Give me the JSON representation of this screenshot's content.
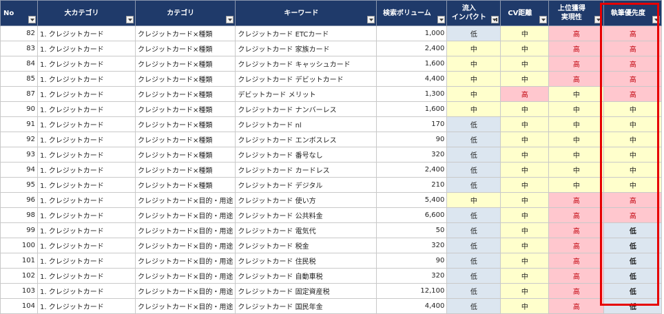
{
  "headers": {
    "no": "No",
    "major": "大カテゴリ",
    "category": "カテゴリ",
    "keyword": "キーワード",
    "volume": "検索ボリューム",
    "impact": "流入\nインパクト",
    "cv": "CV距離",
    "rank": "上位獲得\n実現性",
    "priority": "執筆優先度"
  },
  "levels": {
    "low": "低",
    "mid": "中",
    "high": "高"
  },
  "colors": {
    "header_bg": "#1f3a6a",
    "low_bg": "#dce6f0",
    "mid_bg": "#ffffcc",
    "high_bg": "#ffc7ce",
    "high_text": "#c0000b",
    "highlight_border": "#e60000"
  },
  "rows": [
    {
      "no": "82",
      "major": "1. クレジットカード",
      "category": "クレジットカード×種類",
      "keyword": "クレジットカード ETCカード",
      "volume": "1,000",
      "impact": "low",
      "cv": "mid",
      "rank": "high",
      "priority": "high"
    },
    {
      "no": "83",
      "major": "1. クレジットカード",
      "category": "クレジットカード×種類",
      "keyword": "クレジットカード 家族カード",
      "volume": "2,400",
      "impact": "mid",
      "cv": "mid",
      "rank": "high",
      "priority": "high"
    },
    {
      "no": "84",
      "major": "1. クレジットカード",
      "category": "クレジットカード×種類",
      "keyword": "クレジットカード キャッシュカード",
      "volume": "1,600",
      "impact": "mid",
      "cv": "mid",
      "rank": "high",
      "priority": "high"
    },
    {
      "no": "85",
      "major": "1. クレジットカード",
      "category": "クレジットカード×種類",
      "keyword": "クレジットカード デビットカード",
      "volume": "4,400",
      "impact": "mid",
      "cv": "mid",
      "rank": "high",
      "priority": "high"
    },
    {
      "no": "87",
      "major": "1. クレジットカード",
      "category": "クレジットカード×種類",
      "keyword": "デビットカード メリット",
      "volume": "1,300",
      "impact": "mid",
      "cv": "high",
      "rank": "mid",
      "priority": "high"
    },
    {
      "no": "90",
      "major": "1. クレジットカード",
      "category": "クレジットカード×種類",
      "keyword": "クレジットカード ナンバーレス",
      "volume": "1,600",
      "impact": "mid",
      "cv": "mid",
      "rank": "mid",
      "priority": "mid"
    },
    {
      "no": "91",
      "major": "1. クレジットカード",
      "category": "クレジットカード×種類",
      "keyword": "クレジットカード nl",
      "volume": "170",
      "impact": "low",
      "cv": "mid",
      "rank": "mid",
      "priority": "mid"
    },
    {
      "no": "92",
      "major": "1. クレジットカード",
      "category": "クレジットカード×種類",
      "keyword": "クレジットカード エンボスレス",
      "volume": "90",
      "impact": "low",
      "cv": "mid",
      "rank": "mid",
      "priority": "mid"
    },
    {
      "no": "93",
      "major": "1. クレジットカード",
      "category": "クレジットカード×種類",
      "keyword": "クレジットカード 番号なし",
      "volume": "320",
      "impact": "low",
      "cv": "mid",
      "rank": "mid",
      "priority": "mid"
    },
    {
      "no": "94",
      "major": "1. クレジットカード",
      "category": "クレジットカード×種類",
      "keyword": "クレジットカード カードレス",
      "volume": "2,400",
      "impact": "low",
      "cv": "mid",
      "rank": "mid",
      "priority": "mid"
    },
    {
      "no": "95",
      "major": "1. クレジットカード",
      "category": "クレジットカード×種類",
      "keyword": "クレジットカード デジタル",
      "volume": "210",
      "impact": "low",
      "cv": "mid",
      "rank": "mid",
      "priority": "mid"
    },
    {
      "no": "96",
      "major": "1. クレジットカード",
      "category": "クレジットカード×目的・用途",
      "keyword": "クレジットカード 使い方",
      "volume": "5,400",
      "impact": "mid",
      "cv": "mid",
      "rank": "high",
      "priority": "high"
    },
    {
      "no": "98",
      "major": "1. クレジットカード",
      "category": "クレジットカード×目的・用途",
      "keyword": "クレジットカード 公共料金",
      "volume": "6,600",
      "impact": "low",
      "cv": "mid",
      "rank": "high",
      "priority": "high"
    },
    {
      "no": "99",
      "major": "1. クレジットカード",
      "category": "クレジットカード×目的・用途",
      "keyword": "クレジットカード 電気代",
      "volume": "50",
      "impact": "low",
      "cv": "mid",
      "rank": "high",
      "priority": "low"
    },
    {
      "no": "100",
      "major": "1. クレジットカード",
      "category": "クレジットカード×目的・用途",
      "keyword": "クレジットカード 税金",
      "volume": "320",
      "impact": "low",
      "cv": "mid",
      "rank": "high",
      "priority": "low"
    },
    {
      "no": "101",
      "major": "1. クレジットカード",
      "category": "クレジットカード×目的・用途",
      "keyword": "クレジットカード 住民税",
      "volume": "90",
      "impact": "low",
      "cv": "mid",
      "rank": "high",
      "priority": "low"
    },
    {
      "no": "102",
      "major": "1. クレジットカード",
      "category": "クレジットカード×目的・用途",
      "keyword": "クレジットカード 自動車税",
      "volume": "320",
      "impact": "low",
      "cv": "mid",
      "rank": "high",
      "priority": "low"
    },
    {
      "no": "103",
      "major": "1. クレジットカード",
      "category": "クレジットカード×目的・用途",
      "keyword": "クレジットカード 固定資産税",
      "volume": "12,100",
      "impact": "low",
      "cv": "mid",
      "rank": "high",
      "priority": "low"
    },
    {
      "no": "104",
      "major": "1. クレジットカード",
      "category": "クレジットカード×目的・用途",
      "keyword": "クレジットカード 国民年金",
      "volume": "4,400",
      "impact": "low",
      "cv": "mid",
      "rank": "high",
      "priority": "low"
    }
  ]
}
